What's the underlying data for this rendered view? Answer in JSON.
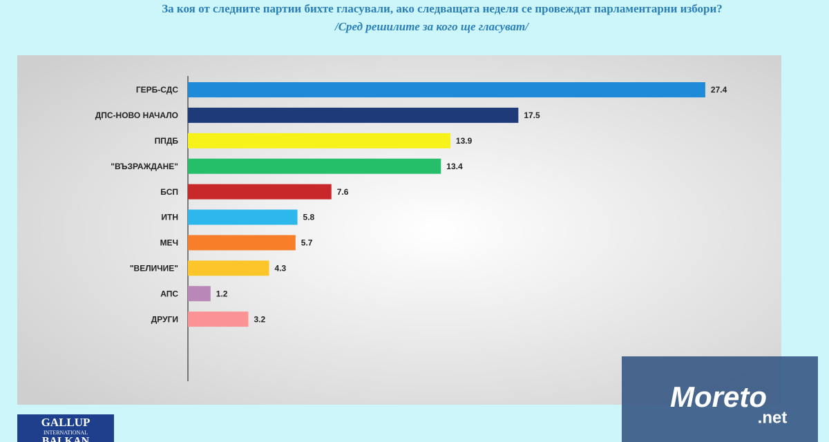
{
  "chart_data": {
    "type": "hbar",
    "title": "За коя от следните партии бихте гласували, ако следващата неделя се провеждат парламентарни избори?",
    "subtitle": "/Сред решилите за кого ще гласуват/",
    "categories": [
      "ГЕРБ-СДС",
      "ДПС-НОВО НАЧАЛО",
      "ППДБ",
      "\"ВЪЗРАЖДАНЕ\"",
      "БСП",
      "ИТН",
      "МЕЧ",
      "\"ВЕЛИЧИЕ\"",
      "АПС",
      "ДРУГИ"
    ],
    "values": [
      27.4,
      17.5,
      13.9,
      13.4,
      7.6,
      5.8,
      5.7,
      4.3,
      1.2,
      3.2
    ],
    "colors": [
      "#1f8ad8",
      "#1e3a78",
      "#f7f21a",
      "#25bf6a",
      "#c8282a",
      "#2db7ea",
      "#f77f2a",
      "#fcc52a",
      "#b987b8",
      "#fb9396"
    ],
    "xlim": [
      0,
      30
    ]
  },
  "logos": {
    "gallup": [
      "GALLUP",
      "INTERNATIONAL",
      "BALKAN"
    ],
    "watermark": [
      "Moreto",
      ".net"
    ]
  }
}
